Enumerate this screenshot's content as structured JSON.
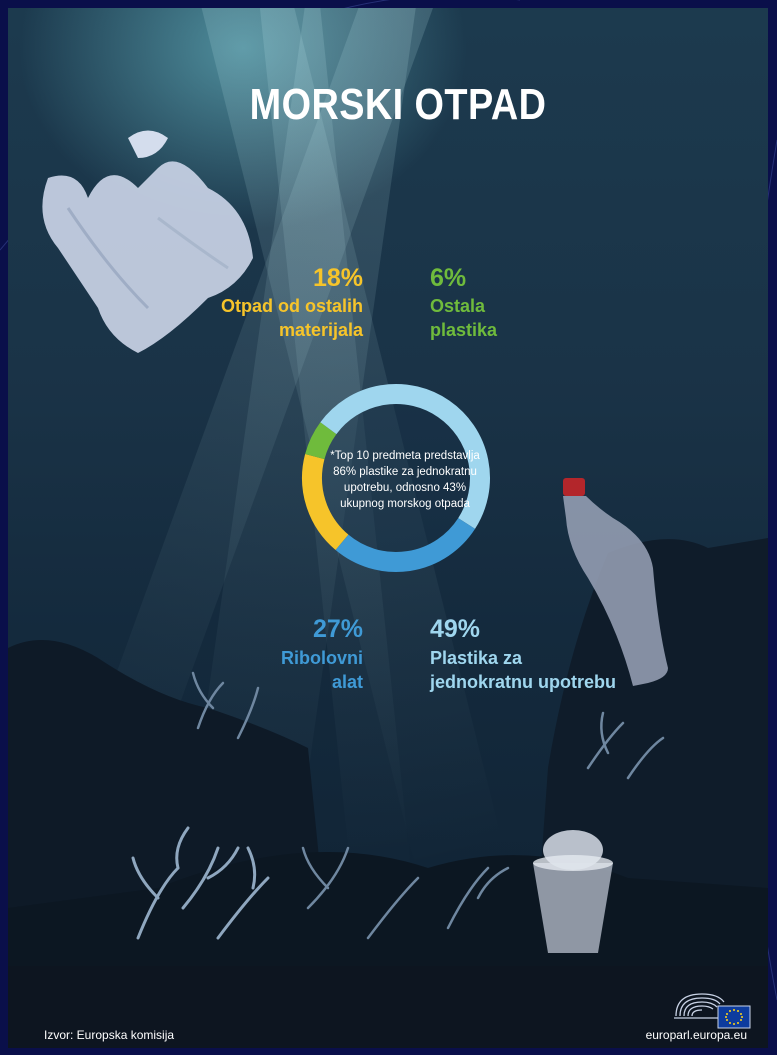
{
  "title": "MORSKI OTPAD",
  "chart_data": {
    "type": "pie",
    "categories": [
      "Otpad od ostalih materijala",
      "Ostala plastika",
      "Plastika za jednokratnu upotrebu",
      "Ribolovni alat"
    ],
    "values": [
      18,
      6,
      49,
      27
    ],
    "colors": [
      "#f6c42a",
      "#6fbb3c",
      "#9fd6ee",
      "#3f9ad6"
    ],
    "labels": {
      "other_materials": {
        "value": "18%",
        "line1": "Otpad od ostalih",
        "line2": "materijala"
      },
      "other_plastic": {
        "value": "6%",
        "line1": "Ostala",
        "line2": "plastika"
      },
      "fishing_gear": {
        "value": "27%",
        "line1": "Ribolovni",
        "line2": "alat"
      },
      "single_use": {
        "value": "49%",
        "line1": "Plastika za",
        "line2": "jednokratnu upotrebu"
      }
    },
    "note": {
      "line1": "*Top 10 predmeta predstavlja",
      "line2": "86% plastike za jednokratnu",
      "line3": "upotrebu, odnosno 43%",
      "line4": "ukupnog morskog otpada"
    }
  },
  "footer": {
    "source": "Izvor: Europska komisija",
    "website": "europarl.europa.eu"
  }
}
